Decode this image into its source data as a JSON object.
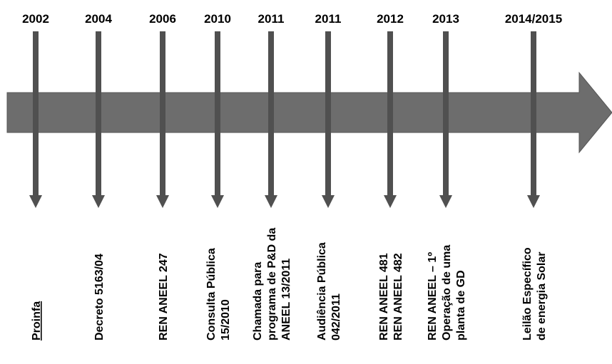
{
  "colors": {
    "arrow": "#6d6d6d",
    "arrow_stroke": "#555555",
    "marker": "#505050",
    "text": "#000000"
  },
  "events": [
    {
      "year": "2002",
      "label": [
        "Proinfa"
      ]
    },
    {
      "year": "2004",
      "label": [
        "Decreto 5163/04"
      ]
    },
    {
      "year": "2006",
      "label": [
        "REN ANEEL 247"
      ]
    },
    {
      "year": "2010",
      "label": [
        "Consulta Pública",
        "15/2010"
      ]
    },
    {
      "year": "2011",
      "label": [
        "Chamada para",
        "programa de P&D da",
        "ANEEL 13/2011"
      ]
    },
    {
      "year": "2011",
      "label": [
        "Audiência Pública",
        "042/2011"
      ]
    },
    {
      "year": "2012",
      "label": [
        "REN ANEEL 481",
        "REN ANEEL 482"
      ]
    },
    {
      "year": "2013",
      "label": [
        "REN ANEEL – 1º",
        "Operação de uma",
        "planta de GD"
      ]
    },
    {
      "year": "2014/2015",
      "label": [
        "Leilão Específico",
        "de energia Solar"
      ]
    }
  ]
}
